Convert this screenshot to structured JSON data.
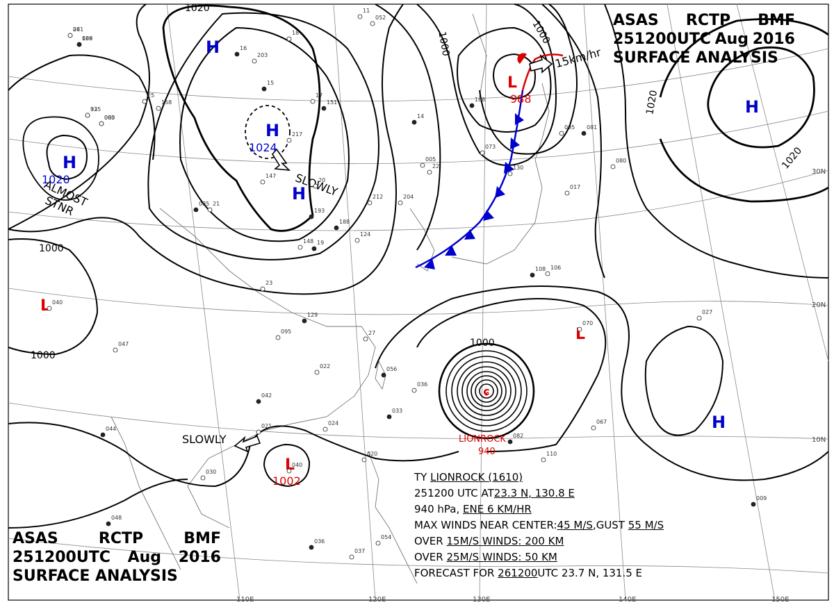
{
  "headers": {
    "top": {
      "line1": [
        "ASAS",
        "RCTP",
        "BMF"
      ],
      "line2": [
        "251200UTC",
        "Aug",
        "2016"
      ],
      "line3": "SURFACE ANALYSIS"
    },
    "bottom": {
      "line1": [
        "ASAS",
        "RCTP",
        "BMF"
      ],
      "line2": [
        "251200UTC",
        "Aug",
        "2016"
      ],
      "line3": "SURFACE ANALYSIS"
    }
  },
  "pressure_centers": [
    {
      "type": "H",
      "value": "",
      "color": "#0000cc"
    },
    {
      "type": "H",
      "value": "1024",
      "color": "#0000cc"
    },
    {
      "type": "H",
      "value": "",
      "color": "#0000cc"
    },
    {
      "type": "H",
      "value": "1020",
      "color": "#0000cc"
    },
    {
      "type": "H",
      "value": "",
      "color": "#0000cc"
    },
    {
      "type": "H",
      "value": "",
      "color": "#0000cc"
    },
    {
      "type": "L",
      "value": "988",
      "color": "#dd0000"
    },
    {
      "type": "L",
      "value": "",
      "color": "#dd0000"
    },
    {
      "type": "L",
      "value": "",
      "color": "#dd0000"
    },
    {
      "type": "L",
      "value": "1002",
      "color": "#dd0000"
    }
  ],
  "isobar_labels": [
    "1020",
    "1000",
    "1000",
    "1000",
    "1000",
    "1020",
    "1020",
    "1000"
  ],
  "motion_labels": [
    "SLOWLY",
    "ALMOST",
    "STNR",
    "15km/hr",
    "SLOWLY"
  ],
  "lat_labels": [
    "30N",
    "20N",
    "10N"
  ],
  "lon_labels": [
    "110E",
    "120E",
    "130E",
    "140E",
    "150E"
  ],
  "typhoon_label": {
    "name": "LIONROCK",
    "pressure": "940"
  },
  "typhoon_info": {
    "line1_prefix": "TY ",
    "line1_name": "LIONROCK (1610)",
    "line2_a": "251200 UTC  AT",
    "line2_lat": "23.3 N, 130.8 E",
    "line3_a": "940 hPa, ",
    "line3_move": "ENE  6 KM/HR",
    "line4_a": "MAX WINDS NEAR CENTER:",
    "line4_b": "45 M/S",
    "line4_c": ",GUST ",
    "line4_d": "55 M/S",
    "line5_a": "OVER ",
    "line5_b": "15M/S WINDS: 200 KM",
    "line6_a": "OVER ",
    "line6_b": "25M/S WINDS: 50 KM",
    "line7_a": "FORECAST FOR ",
    "line7_b": "261200",
    "line7_c": "UTC 23.7 N, 131.5 E"
  },
  "station_numbers": [
    "26",
    "166",
    "32",
    "080",
    "25",
    "158",
    "16",
    "203",
    "18",
    "15",
    "217",
    "17",
    "151",
    "11",
    "052",
    "14",
    "005",
    "22",
    "085",
    "21",
    "148",
    "19",
    "147",
    "20",
    "193",
    "212",
    "204",
    "188",
    "124",
    "23",
    "129",
    "095",
    "27",
    "056",
    "036",
    "022",
    "042",
    "021",
    "024",
    "033",
    "047",
    "040",
    "044",
    "030",
    "020",
    "036",
    "037",
    "054",
    "048",
    "040",
    "070",
    "082",
    "110",
    "067",
    "009",
    "027",
    "017",
    "081",
    "080",
    "106",
    "108",
    "095",
    "130",
    "168",
    "073",
    "071",
    "029",
    "935",
    "003"
  ]
}
